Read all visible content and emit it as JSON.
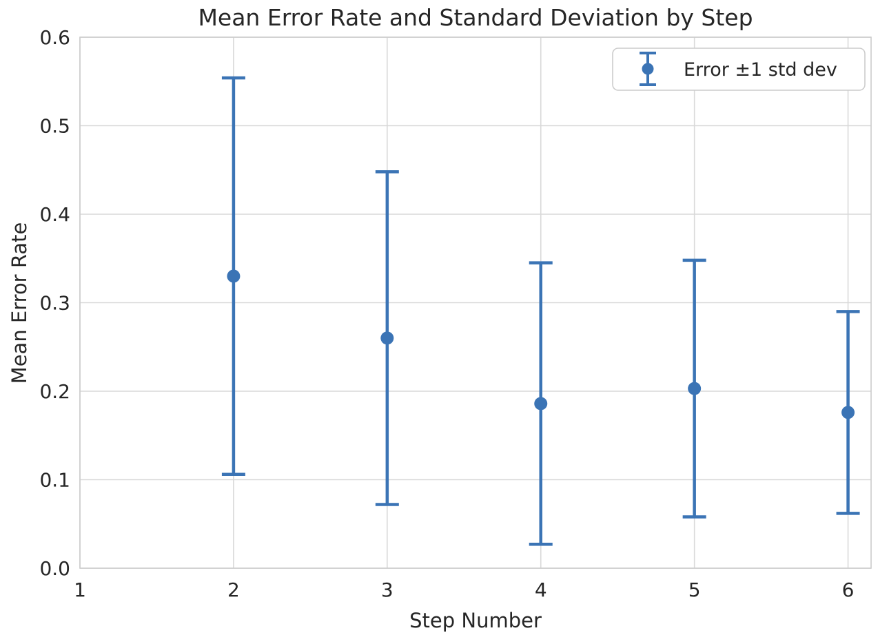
{
  "chart_data": {
    "type": "scatter",
    "title": "Mean Error Rate and Standard Deviation by Step",
    "xlabel": "Step Number",
    "ylabel": "Mean Error Rate",
    "legend": [
      {
        "label": "Error ±1 std dev"
      }
    ],
    "legend_position": "upper right",
    "grid": true,
    "x": [
      2,
      3,
      4,
      5,
      6
    ],
    "series": [
      {
        "name": "Error ±1 std dev",
        "means": [
          0.33,
          0.26,
          0.186,
          0.203,
          0.176
        ],
        "std_devs": [
          0.224,
          0.188,
          0.159,
          0.145,
          0.114
        ],
        "lower": [
          0.106,
          0.072,
          0.027,
          0.058,
          0.062
        ],
        "upper": [
          0.553,
          0.448,
          0.345,
          0.348,
          0.29
        ]
      }
    ],
    "xlim": [
      1,
      6.15
    ],
    "ylim": [
      0.0,
      0.6
    ],
    "xticks": [
      "1",
      "2",
      "3",
      "4",
      "5",
      "6"
    ],
    "xtick_values": [
      1,
      2,
      3,
      4,
      5,
      6
    ],
    "yticks": [
      "0.0",
      "0.1",
      "0.2",
      "0.3",
      "0.4",
      "0.5",
      "0.6"
    ],
    "ytick_values": [
      0.0,
      0.1,
      0.2,
      0.3,
      0.4,
      0.5,
      0.6
    ],
    "colors": {
      "series": "#3b74b5",
      "grid": "#d9d9d9",
      "spine": "#cccccc",
      "text": "#262626",
      "background": "#ffffff",
      "legend_border": "#cccccc",
      "legend_fill": "#ffffff"
    }
  }
}
